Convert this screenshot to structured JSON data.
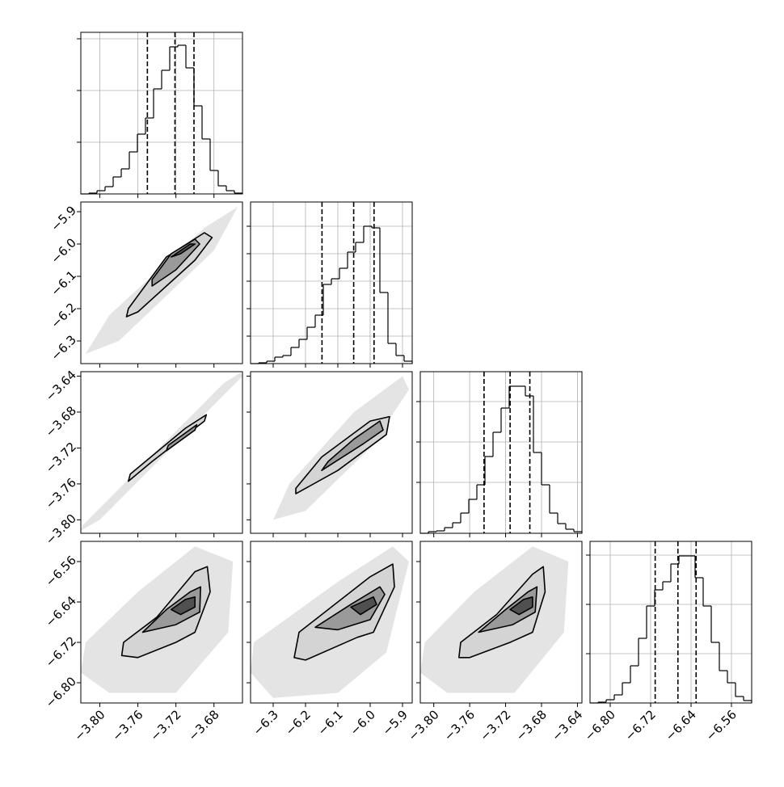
{
  "chart_data": {
    "type": "corner",
    "line_color": "#000000",
    "grid_color": "#b0b0b0",
    "cloud_color": "#e4e4e4",
    "contour_fills": [
      "#d4d4d4",
      "#9a9a9a",
      "#505050"
    ],
    "grid": true,
    "params": [
      {
        "range": [
          -3.82,
          -3.65
        ],
        "ticks": [
          {
            "value": -3.8,
            "label": "−3.80"
          },
          {
            "value": -3.76,
            "label": "−3.76"
          },
          {
            "value": -3.72,
            "label": "−3.72"
          },
          {
            "value": -3.68,
            "label": "−3.68"
          }
        ],
        "quantiles": [
          -3.75,
          -3.721,
          -3.701
        ],
        "hist": {
          "bins": [
            -3.82,
            -3.8115,
            -3.803,
            -3.7945,
            -3.786,
            -3.7775,
            -3.769,
            -3.7605,
            -3.752,
            -3.7435,
            -3.735,
            -3.7265,
            -3.718,
            -3.7095,
            -3.701,
            -3.6925,
            -3.684,
            -3.6755,
            -3.667,
            -3.6585,
            -3.65
          ],
          "counts": [
            0,
            1,
            4,
            9,
            21,
            31,
            52,
            74,
            94,
            130,
            153,
            182,
            184,
            156,
            109,
            68,
            29,
            10,
            4,
            1
          ],
          "ylim": [
            0,
            200
          ],
          "yticks": [
            64,
            128,
            192
          ]
        }
      },
      {
        "range": [
          -6.37,
          -5.87
        ],
        "ticks": [
          {
            "value": -6.3,
            "label": "−6.3"
          },
          {
            "value": -6.2,
            "label": "−6.2"
          },
          {
            "value": -6.1,
            "label": "−6.1"
          },
          {
            "value": -6.0,
            "label": "−6.0"
          },
          {
            "value": -5.9,
            "label": "−5.9"
          }
        ],
        "quantiles": [
          -6.149,
          -6.051,
          -5.988
        ],
        "hist": {
          "bins": [
            -6.37,
            -6.345,
            -6.32,
            -6.295,
            -6.27,
            -6.245,
            -6.22,
            -6.195,
            -6.17,
            -6.145,
            -6.12,
            -6.095,
            -6.07,
            -6.045,
            -6.02,
            -5.995,
            -5.97,
            -5.945,
            -5.92,
            -5.895,
            -5.87
          ],
          "counts": [
            0,
            1,
            3,
            8,
            10,
            20,
            30,
            45,
            60,
            98,
            105,
            118,
            138,
            150,
            170,
            168,
            88,
            25,
            10,
            3
          ],
          "ylim": [
            0,
            200
          ],
          "yticks": [
            34,
            68,
            102,
            136,
            170
          ]
        }
      },
      {
        "range": [
          -3.815,
          -3.635
        ],
        "ticks": [
          {
            "value": -3.8,
            "label": "−3.80"
          },
          {
            "value": -3.76,
            "label": "−3.76"
          },
          {
            "value": -3.72,
            "label": "−3.72"
          },
          {
            "value": -3.68,
            "label": "−3.68"
          },
          {
            "value": -3.64,
            "label": "−3.64"
          }
        ],
        "quantiles": [
          -3.744,
          -3.715,
          -3.693
        ],
        "hist": {
          "bins": [
            -3.815,
            -3.806,
            -3.797,
            -3.788,
            -3.779,
            -3.77,
            -3.761,
            -3.752,
            -3.743,
            -3.734,
            -3.725,
            -3.716,
            -3.707,
            -3.698,
            -3.689,
            -3.68,
            -3.671,
            -3.662,
            -3.653,
            -3.644,
            -3.635
          ],
          "counts": [
            0,
            2,
            3,
            7,
            13,
            25,
            42,
            60,
            95,
            125,
            155,
            182,
            182,
            170,
            100,
            60,
            25,
            12,
            5,
            2
          ],
          "ylim": [
            0,
            200
          ],
          "yticks": [
            63,
            113,
            163
          ]
        }
      },
      {
        "range": [
          -6.84,
          -6.52
        ],
        "ticks": [
          {
            "value": -6.8,
            "label": "−6.80"
          },
          {
            "value": -6.72,
            "label": "−6.72"
          },
          {
            "value": -6.64,
            "label": "−6.64"
          },
          {
            "value": -6.56,
            "label": "−6.56"
          }
        ],
        "quantiles": [
          -6.711,
          -6.666,
          -6.63
        ],
        "hist": {
          "bins": [
            -6.84,
            -6.824,
            -6.808,
            -6.792,
            -6.776,
            -6.76,
            -6.744,
            -6.728,
            -6.712,
            -6.696,
            -6.68,
            -6.664,
            -6.648,
            -6.632,
            -6.616,
            -6.6,
            -6.584,
            -6.568,
            -6.552,
            -6.536,
            -6.52
          ],
          "counts": [
            0,
            1,
            4,
            10,
            25,
            46,
            80,
            120,
            140,
            150,
            172,
            182,
            182,
            155,
            120,
            75,
            40,
            25,
            8,
            3
          ],
          "ylim": [
            0,
            200
          ],
          "yticks": [
            61,
            122,
            183
          ]
        }
      }
    ],
    "panels": [
      {
        "cloud": [
          [
            -3.815,
            -6.34
          ],
          [
            -3.78,
            -6.3
          ],
          [
            -3.68,
            -6.02
          ],
          [
            -3.655,
            -5.885
          ],
          [
            -3.69,
            -5.95
          ],
          [
            -3.79,
            -6.22
          ]
        ],
        "contours": [
          [
            [
              -3.772,
              -6.225
            ],
            [
              -3.76,
              -6.21
            ],
            [
              -3.7,
              -6.05
            ],
            [
              -3.682,
              -5.98
            ],
            [
              -3.69,
              -5.965
            ],
            [
              -3.73,
              -6.04
            ],
            [
              -3.77,
              -6.2
            ]
          ],
          [
            [
              -3.745,
              -6.13
            ],
            [
              -3.72,
              -6.08
            ],
            [
              -3.695,
              -6.0
            ],
            [
              -3.7,
              -5.985
            ],
            [
              -3.725,
              -6.03
            ],
            [
              -3.745,
              -6.11
            ]
          ],
          [
            [
              -3.725,
              -6.04
            ],
            [
              -3.705,
              -6.0
            ],
            [
              -3.7,
              -6.0
            ],
            [
              -3.715,
              -6.03
            ]
          ]
        ]
      },
      {
        "cloud": [
          [
            -3.82,
            -3.812
          ],
          [
            -3.8,
            -3.8
          ],
          [
            -3.65,
            -3.64
          ],
          [
            -3.652,
            -3.636
          ],
          [
            -3.67,
            -3.648
          ],
          [
            -3.818,
            -3.806
          ]
        ],
        "contours": [
          [
            [
              -3.77,
              -3.757
            ],
            [
              -3.745,
              -3.735
            ],
            [
              -3.69,
              -3.69
            ],
            [
              -3.688,
              -3.683
            ],
            [
              -3.71,
              -3.698
            ],
            [
              -3.768,
              -3.749
            ]
          ],
          [
            [
              -3.73,
              -3.723
            ],
            [
              -3.7,
              -3.7
            ],
            [
              -3.698,
              -3.694
            ],
            [
              -3.728,
              -3.717
            ]
          ]
        ]
      },
      {
        "cloud": [
          [
            -6.3,
            -3.8
          ],
          [
            -6.2,
            -3.79
          ],
          [
            -6.0,
            -3.72
          ],
          [
            -5.88,
            -3.655
          ],
          [
            -5.9,
            -3.64
          ],
          [
            -6.05,
            -3.68
          ],
          [
            -6.25,
            -3.76
          ]
        ],
        "contours": [
          [
            [
              -6.23,
              -3.771
            ],
            [
              -6.1,
              -3.745
            ],
            [
              -5.95,
              -3.705
            ],
            [
              -5.94,
              -3.685
            ],
            [
              -6.0,
              -3.69
            ],
            [
              -6.15,
              -3.73
            ],
            [
              -6.23,
              -3.765
            ]
          ],
          [
            [
              -6.15,
              -3.745
            ],
            [
              -6.02,
              -3.715
            ],
            [
              -5.96,
              -3.7
            ],
            [
              -5.97,
              -3.69
            ],
            [
              -6.05,
              -3.71
            ],
            [
              -6.13,
              -3.735
            ]
          ]
        ]
      },
      {
        "cloud": [
          [
            -3.82,
            -6.78
          ],
          [
            -3.79,
            -6.82
          ],
          [
            -3.72,
            -6.82
          ],
          [
            -3.665,
            -6.7
          ],
          [
            -3.66,
            -6.56
          ],
          [
            -3.7,
            -6.53
          ],
          [
            -3.76,
            -6.62
          ],
          [
            -3.815,
            -6.72
          ]
        ],
        "contours": [
          [
            [
              -3.777,
              -6.746
            ],
            [
              -3.775,
              -6.72
            ],
            [
              -3.74,
              -6.67
            ],
            [
              -3.7,
              -6.58
            ],
            [
              -3.687,
              -6.57
            ],
            [
              -3.684,
              -6.62
            ],
            [
              -3.7,
              -6.7
            ],
            [
              -3.72,
              -6.72
            ],
            [
              -3.76,
              -6.75
            ]
          ],
          [
            [
              -3.755,
              -6.7
            ],
            [
              -3.73,
              -6.655
            ],
            [
              -3.705,
              -6.62
            ],
            [
              -3.694,
              -6.61
            ],
            [
              -3.695,
              -6.66
            ],
            [
              -3.72,
              -6.685
            ]
          ],
          [
            [
              -3.725,
              -6.655
            ],
            [
              -3.71,
              -6.635
            ],
            [
              -3.7,
              -6.63
            ],
            [
              -3.7,
              -6.65
            ],
            [
              -3.715,
              -6.665
            ]
          ]
        ]
      },
      {
        "cloud": [
          [
            -6.37,
            -6.78
          ],
          [
            -6.3,
            -6.83
          ],
          [
            -6.1,
            -6.82
          ],
          [
            -5.95,
            -6.74
          ],
          [
            -5.88,
            -6.56
          ],
          [
            -5.93,
            -6.53
          ],
          [
            -6.1,
            -6.6
          ],
          [
            -6.36,
            -6.72
          ]
        ],
        "contours": [
          [
            [
              -6.235,
              -6.75
            ],
            [
              -6.22,
              -6.7
            ],
            [
              -6.12,
              -6.65
            ],
            [
              -6.0,
              -6.59
            ],
            [
              -5.93,
              -6.565
            ],
            [
              -5.925,
              -6.61
            ],
            [
              -5.99,
              -6.7
            ],
            [
              -6.04,
              -6.71
            ],
            [
              -6.2,
              -6.755
            ]
          ],
          [
            [
              -6.17,
              -6.69
            ],
            [
              -6.06,
              -6.645
            ],
            [
              -5.97,
              -6.61
            ],
            [
              -5.955,
              -6.625
            ],
            [
              -6.0,
              -6.675
            ],
            [
              -6.1,
              -6.695
            ]
          ],
          [
            [
              -6.06,
              -6.65
            ],
            [
              -5.99,
              -6.63
            ],
            [
              -5.98,
              -6.645
            ],
            [
              -6.03,
              -6.665
            ]
          ]
        ]
      },
      {
        "cloud": [
          [
            -3.815,
            -6.78
          ],
          [
            -3.785,
            -6.82
          ],
          [
            -3.71,
            -6.82
          ],
          [
            -3.655,
            -6.7
          ],
          [
            -3.65,
            -6.56
          ],
          [
            -3.69,
            -6.53
          ],
          [
            -3.755,
            -6.62
          ],
          [
            -3.81,
            -6.72
          ]
        ],
        "contours": [
          [
            [
              -3.772,
              -6.75
            ],
            [
              -3.77,
              -6.72
            ],
            [
              -3.73,
              -6.665
            ],
            [
              -3.69,
              -6.585
            ],
            [
              -3.678,
              -6.57
            ],
            [
              -3.676,
              -6.62
            ],
            [
              -3.69,
              -6.7
            ],
            [
              -3.715,
              -6.72
            ],
            [
              -3.76,
              -6.75
            ]
          ],
          [
            [
              -3.75,
              -6.7
            ],
            [
              -3.72,
              -6.655
            ],
            [
              -3.695,
              -6.62
            ],
            [
              -3.685,
              -6.61
            ],
            [
              -3.687,
              -6.66
            ],
            [
              -3.712,
              -6.685
            ]
          ],
          [
            [
              -3.715,
              -6.655
            ],
            [
              -3.7,
              -6.635
            ],
            [
              -3.69,
              -6.63
            ],
            [
              -3.69,
              -6.65
            ],
            [
              -3.705,
              -6.665
            ]
          ]
        ]
      }
    ]
  }
}
